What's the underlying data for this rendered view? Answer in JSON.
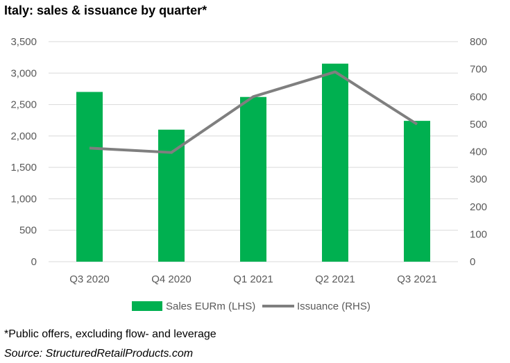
{
  "title": "Italy: sales & issuance by quarter*",
  "footnote": "*Public offers, excluding flow- and leverage",
  "source": "Source: StructuredRetailProducts.com",
  "colors": {
    "bars": "#00b050",
    "line": "#7f7f7f",
    "grid": "#d9d9d9",
    "text": "#595959"
  },
  "chart_data": {
    "type": "bar",
    "categories": [
      "Q3 2020",
      "Q4 2020",
      "Q1 2021",
      "Q2 2021",
      "Q3 2021"
    ],
    "series": [
      {
        "name": "Sales EURm (LHS)",
        "type": "bar",
        "axis": "left",
        "values": [
          2700,
          2100,
          2620,
          3150,
          2240
        ]
      },
      {
        "name": "Issuance (RHS)",
        "type": "line",
        "axis": "right",
        "values": [
          413,
          397,
          600,
          690,
          500
        ]
      }
    ],
    "left_axis": {
      "ylim": [
        0,
        3500
      ],
      "ticks": [
        "0",
        "500",
        "1,000",
        "1,500",
        "2,000",
        "2,500",
        "3,000",
        "3,500"
      ]
    },
    "right_axis": {
      "ylim": [
        0,
        800
      ],
      "ticks": [
        "0",
        "100",
        "200",
        "300",
        "400",
        "500",
        "600",
        "700",
        "800"
      ]
    },
    "grid": true,
    "legend_position": "bottom"
  }
}
